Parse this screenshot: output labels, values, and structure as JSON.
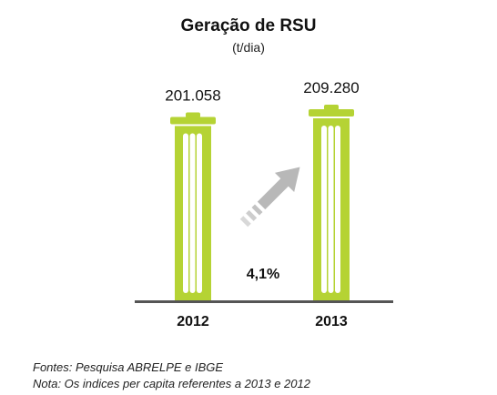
{
  "chart_data": {
    "type": "bar",
    "title": "Geração de RSU",
    "subtitle": "(t/dia)",
    "categories": [
      "2012",
      "2013"
    ],
    "values": [
      201058,
      209280
    ],
    "value_labels": [
      "201.058",
      "209.280"
    ],
    "ylim": [
      0,
      209280
    ],
    "growth_label": "4,1%",
    "bar_color": "#b5d334",
    "axis_color": "#555555",
    "arrow_color": "#b8b8b8",
    "bar_style": "trash-can-icon"
  },
  "notes": {
    "source": "Fontes: Pesquisa ABRELPE e IBGE",
    "nota": "Nota: Os indices per capita referentes a 2013 e 2012"
  }
}
